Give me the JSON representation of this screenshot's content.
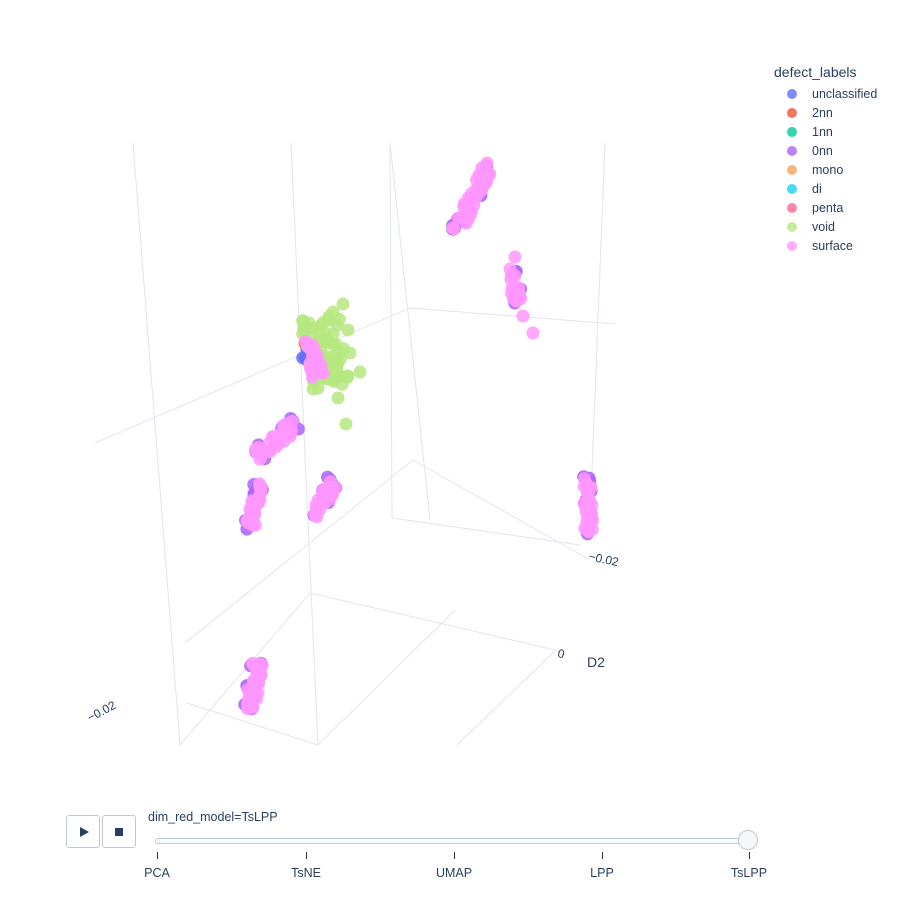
{
  "chart_data": {
    "type": "scatter",
    "title": "",
    "axis_titles": {
      "z": "D2"
    },
    "tick_labels": [
      {
        "value": "−0.02",
        "axis": "left"
      },
      {
        "value": "−0.02",
        "axis": "right"
      },
      {
        "value": "0",
        "axis": "right"
      }
    ],
    "legend": {
      "title": "defect_labels",
      "placement": "top-right",
      "entries": [
        {
          "name": "unclassified",
          "color": "#636efa"
        },
        {
          "name": "2nn",
          "color": "#ef553b"
        },
        {
          "name": "1nn",
          "color": "#00cc96"
        },
        {
          "name": "0nn",
          "color": "#ab63fa"
        },
        {
          "name": "mono",
          "color": "#ffa15a"
        },
        {
          "name": "di",
          "color": "#19d3f3"
        },
        {
          "name": "penta",
          "color": "#ff6692"
        },
        {
          "name": "void",
          "color": "#b6e880"
        },
        {
          "name": "surface",
          "color": "#ff97ff"
        }
      ]
    }
  },
  "slider": {
    "label": "dim_red_model=TsLPP",
    "steps": [
      "PCA",
      "TsNE",
      "UMAP",
      "LPP",
      "TsLPP"
    ],
    "active": "TsLPP"
  },
  "controls": {
    "play": "play-icon",
    "stop": "stop-icon"
  }
}
